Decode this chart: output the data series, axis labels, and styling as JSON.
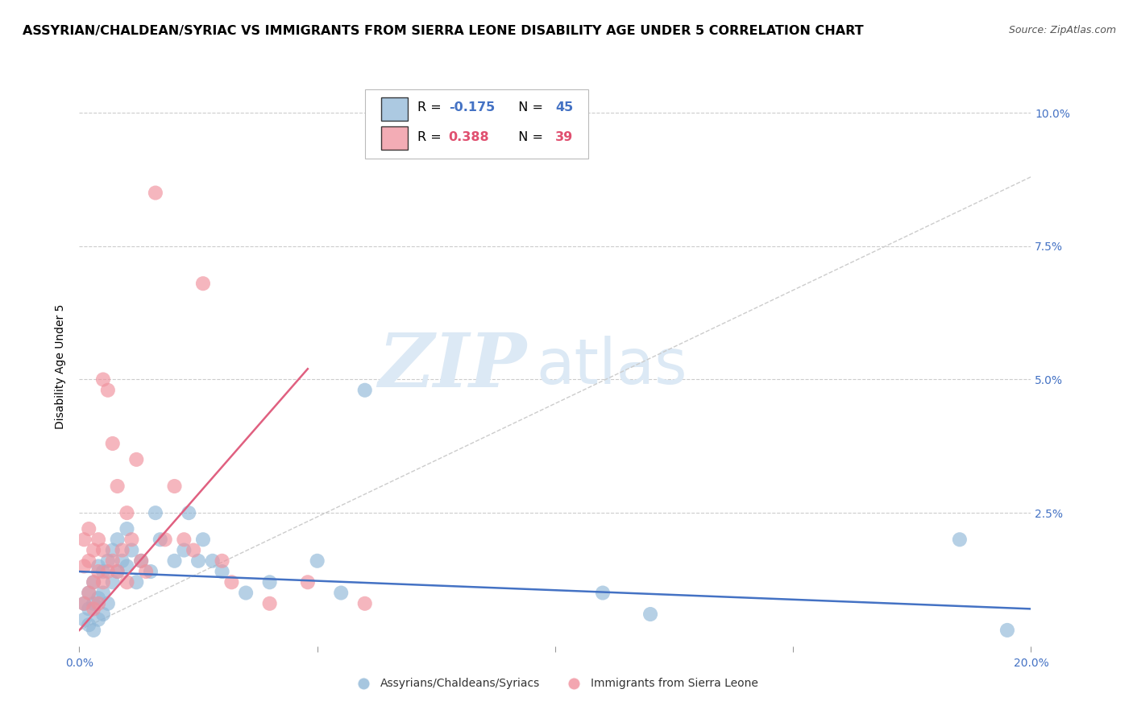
{
  "title": "ASSYRIAN/CHALDEAN/SYRIAC VS IMMIGRANTS FROM SIERRA LEONE DISABILITY AGE UNDER 5 CORRELATION CHART",
  "source": "Source: ZipAtlas.com",
  "ylabel": "Disability Age Under 5",
  "xlim": [
    0.0,
    0.2
  ],
  "ylim": [
    0.0,
    0.105
  ],
  "legend_label1": "Assyrians/Chaldeans/Syriacs",
  "legend_label2": "Immigrants from Sierra Leone",
  "color_blue": "#90b8d8",
  "color_pink": "#f0909c",
  "watermark_zip": "ZIP",
  "watermark_atlas": "atlas",
  "title_fontsize": 11.5,
  "source_fontsize": 9,
  "axis_label_fontsize": 10,
  "tick_fontsize": 10,
  "blue_scatter_x": [
    0.001,
    0.001,
    0.002,
    0.002,
    0.002,
    0.003,
    0.003,
    0.003,
    0.004,
    0.004,
    0.004,
    0.005,
    0.005,
    0.005,
    0.006,
    0.006,
    0.007,
    0.007,
    0.008,
    0.008,
    0.009,
    0.01,
    0.01,
    0.011,
    0.012,
    0.013,
    0.015,
    0.016,
    0.017,
    0.02,
    0.022,
    0.023,
    0.025,
    0.026,
    0.028,
    0.03,
    0.035,
    0.04,
    0.05,
    0.055,
    0.06,
    0.11,
    0.12,
    0.185,
    0.195
  ],
  "blue_scatter_y": [
    0.008,
    0.005,
    0.01,
    0.007,
    0.004,
    0.012,
    0.008,
    0.003,
    0.015,
    0.009,
    0.005,
    0.014,
    0.01,
    0.006,
    0.016,
    0.008,
    0.018,
    0.012,
    0.02,
    0.014,
    0.016,
    0.022,
    0.015,
    0.018,
    0.012,
    0.016,
    0.014,
    0.025,
    0.02,
    0.016,
    0.018,
    0.025,
    0.016,
    0.02,
    0.016,
    0.014,
    0.01,
    0.012,
    0.016,
    0.01,
    0.048,
    0.01,
    0.006,
    0.02,
    0.003
  ],
  "pink_scatter_x": [
    0.001,
    0.001,
    0.001,
    0.002,
    0.002,
    0.002,
    0.003,
    0.003,
    0.003,
    0.004,
    0.004,
    0.004,
    0.005,
    0.005,
    0.005,
    0.006,
    0.006,
    0.007,
    0.007,
    0.008,
    0.008,
    0.009,
    0.01,
    0.01,
    0.011,
    0.012,
    0.013,
    0.014,
    0.016,
    0.018,
    0.02,
    0.022,
    0.024,
    0.026,
    0.03,
    0.032,
    0.04,
    0.048,
    0.06
  ],
  "pink_scatter_y": [
    0.02,
    0.015,
    0.008,
    0.022,
    0.016,
    0.01,
    0.018,
    0.012,
    0.007,
    0.02,
    0.014,
    0.008,
    0.05,
    0.018,
    0.012,
    0.048,
    0.014,
    0.038,
    0.016,
    0.03,
    0.014,
    0.018,
    0.025,
    0.012,
    0.02,
    0.035,
    0.016,
    0.014,
    0.085,
    0.02,
    0.03,
    0.02,
    0.018,
    0.068,
    0.016,
    0.012,
    0.008,
    0.012,
    0.008
  ],
  "blue_trend_x": [
    0.0,
    0.2
  ],
  "blue_trend_y": [
    0.014,
    0.007
  ],
  "pink_trend_x": [
    0.0,
    0.048
  ],
  "pink_trend_y": [
    0.003,
    0.052
  ],
  "dash_trend_x": [
    0.0,
    0.2
  ],
  "dash_trend_y": [
    0.003,
    0.088
  ],
  "background_color": "#ffffff",
  "grid_color": "#cccccc",
  "tick_color_blue": "#4472c4"
}
